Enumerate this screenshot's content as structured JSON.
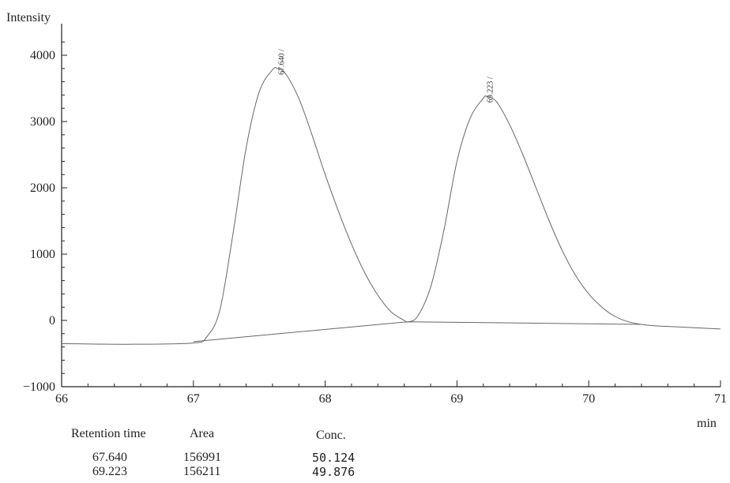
{
  "chart_data": {
    "type": "line",
    "ylabel": "Intensity",
    "xlabel": "min",
    "xlim": [
      66,
      71
    ],
    "ylim": [
      -1000,
      4300
    ],
    "x_ticks": [
      66,
      67,
      68,
      69,
      70,
      71
    ],
    "y_ticks": [
      -1000,
      0,
      1000,
      2000,
      3000,
      4000
    ],
    "x_tick_labels": [
      "66",
      "67",
      "68",
      "69",
      "70",
      "71"
    ],
    "y_tick_labels": [
      "−1000",
      "0",
      "1000",
      "2000",
      "3000",
      "4000"
    ],
    "grid": false,
    "series": [
      {
        "x": [
          66.0,
          66.5,
          67.0,
          67.1,
          67.2,
          67.3,
          67.4,
          67.5,
          67.6,
          67.64,
          67.7,
          67.8,
          67.9,
          68.0,
          68.1,
          68.2,
          68.3,
          68.4,
          68.5,
          68.6,
          68.63,
          68.7,
          68.8,
          68.9,
          69.0,
          69.1,
          69.2,
          69.223,
          69.3,
          69.4,
          69.5,
          69.6,
          69.7,
          69.8,
          69.9,
          70.0,
          70.1,
          70.2,
          70.3,
          70.4,
          70.5,
          70.7,
          71.0
        ],
        "y": [
          -350,
          -360,
          -340,
          -250,
          150,
          1300,
          2600,
          3450,
          3780,
          3800,
          3720,
          3350,
          2800,
          2200,
          1650,
          1150,
          720,
          380,
          130,
          0,
          -20,
          60,
          500,
          1350,
          2400,
          3050,
          3350,
          3380,
          3300,
          2950,
          2500,
          2000,
          1500,
          1050,
          680,
          400,
          200,
          60,
          -20,
          -60,
          -80,
          -100,
          -130
        ]
      }
    ],
    "baseline": {
      "x": [
        67.0,
        68.63,
        70.4
      ],
      "y": [
        -320,
        -20,
        -60
      ]
    },
    "peaks": [
      {
        "label": "67.640",
        "x": 67.64,
        "y": 3800
      },
      {
        "label": "69.223",
        "x": 69.223,
        "y": 3380
      }
    ],
    "table": {
      "headers": [
        "Retention time",
        "Area",
        "Conc."
      ],
      "rows": [
        [
          "67.640",
          "156991",
          "50.124"
        ],
        [
          "69.223",
          "156211",
          "49.876"
        ]
      ]
    }
  }
}
